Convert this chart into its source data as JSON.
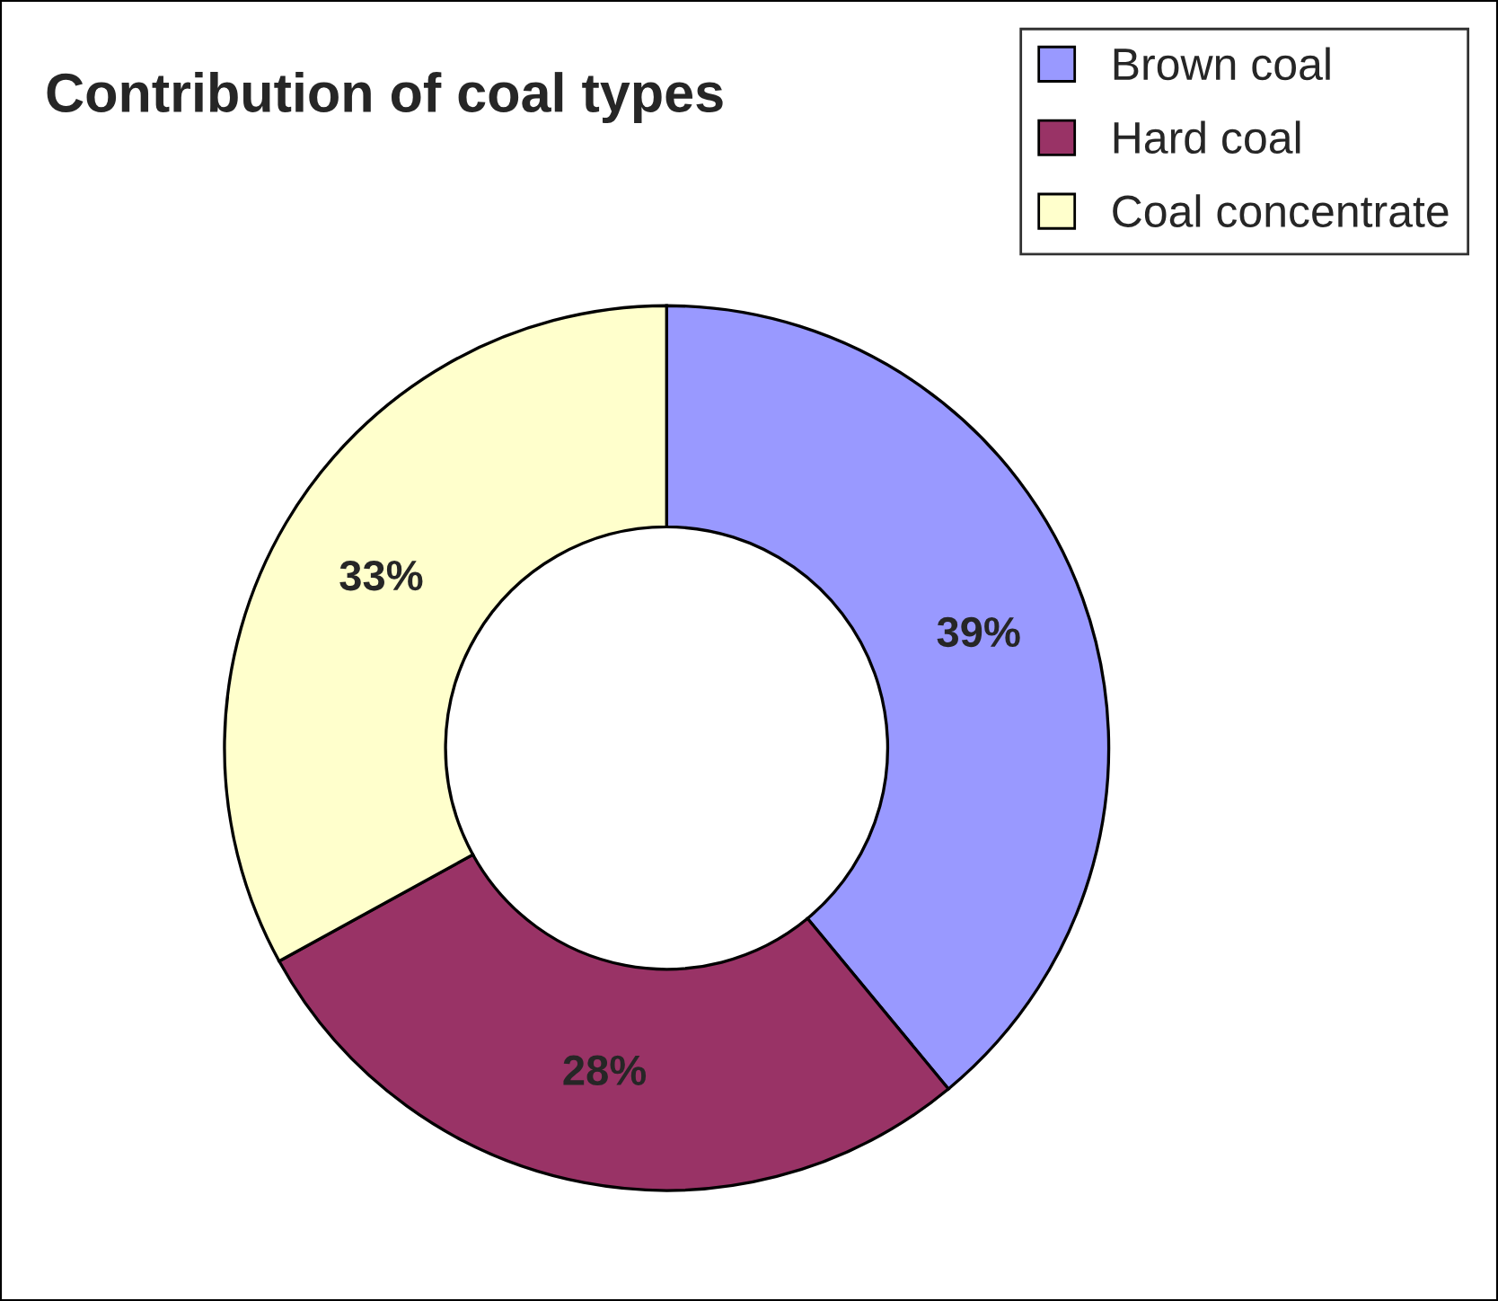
{
  "chart_data": {
    "type": "donut",
    "title": "Contribution of coal types",
    "categories": [
      "Brown coal",
      "Hard coal",
      "Coal concentrate"
    ],
    "values": [
      39,
      28,
      33
    ],
    "colors": [
      "#9999ff",
      "#993366",
      "#ffffcc"
    ],
    "value_labels": [
      "39%",
      "28%",
      "33%"
    ],
    "legend": "top right"
  }
}
